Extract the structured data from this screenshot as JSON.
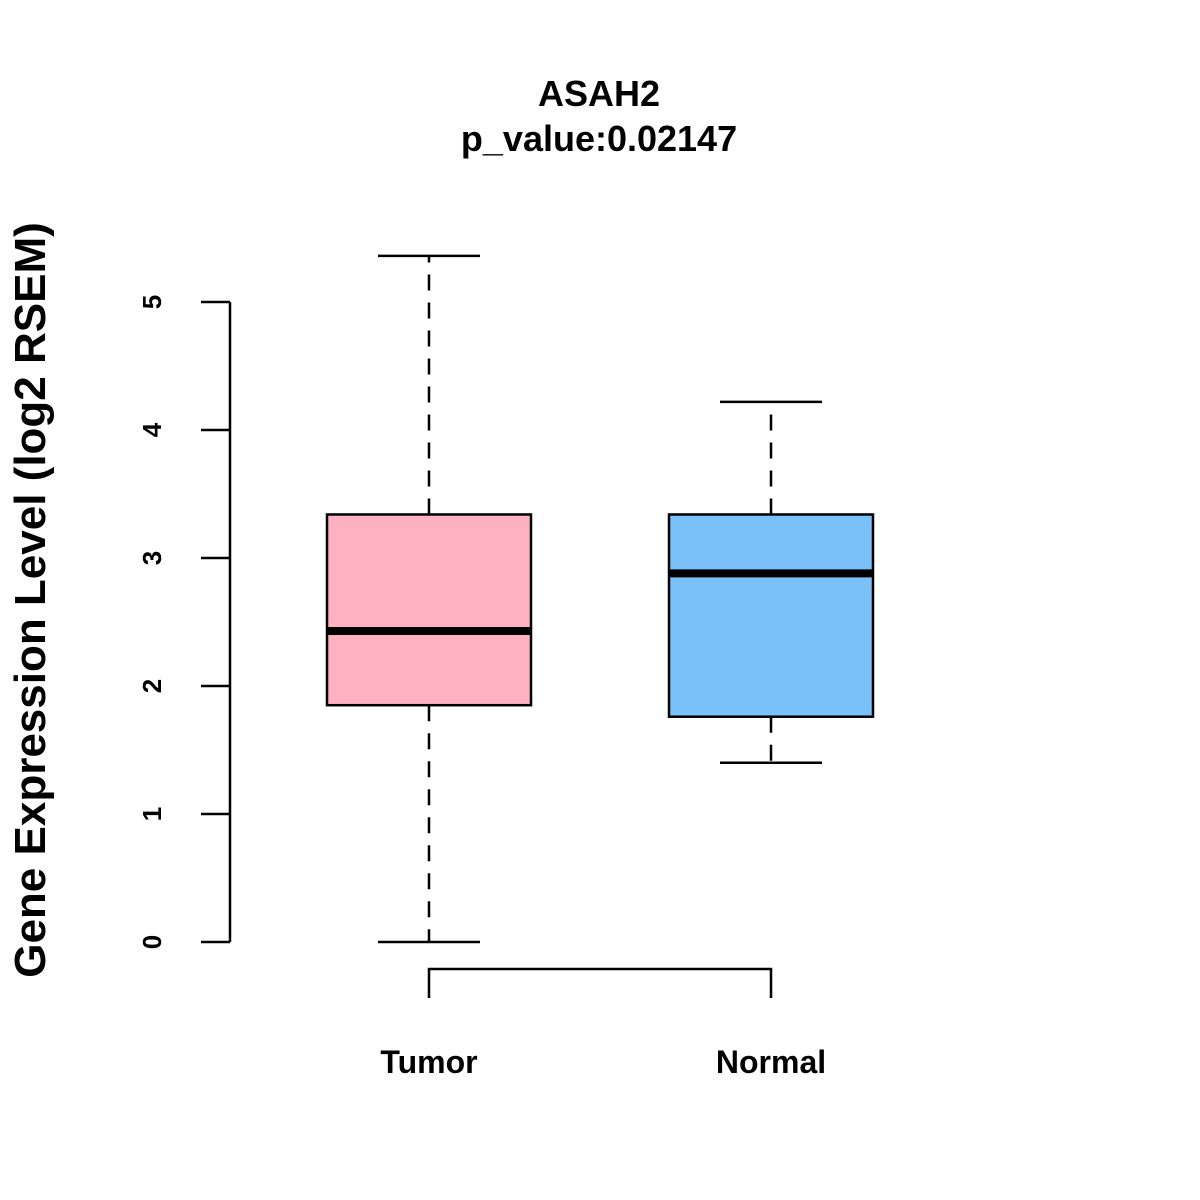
{
  "chart_data": {
    "type": "boxplot",
    "title": "ASAH2",
    "subtitle": "p_value:0.02147",
    "ylabel": "Gene Expression Level (log2 RSEM)",
    "xlabel": "",
    "ylim": [
      0,
      5
    ],
    "yticks": [
      0,
      1,
      2,
      3,
      4,
      5
    ],
    "categories": [
      "Tumor",
      "Normal"
    ],
    "series": [
      {
        "name": "Tumor",
        "color": "#FDB1C1",
        "min": 0.0,
        "q1": 1.85,
        "median": 2.43,
        "q3": 3.34,
        "max": 5.36
      },
      {
        "name": "Normal",
        "color": "#79C1F8",
        "min": 1.4,
        "q1": 1.76,
        "median": 2.88,
        "q3": 3.34,
        "max": 4.22
      }
    ],
    "grid": false,
    "significance_bracket": {
      "from": "Tumor",
      "to": "Normal"
    }
  }
}
